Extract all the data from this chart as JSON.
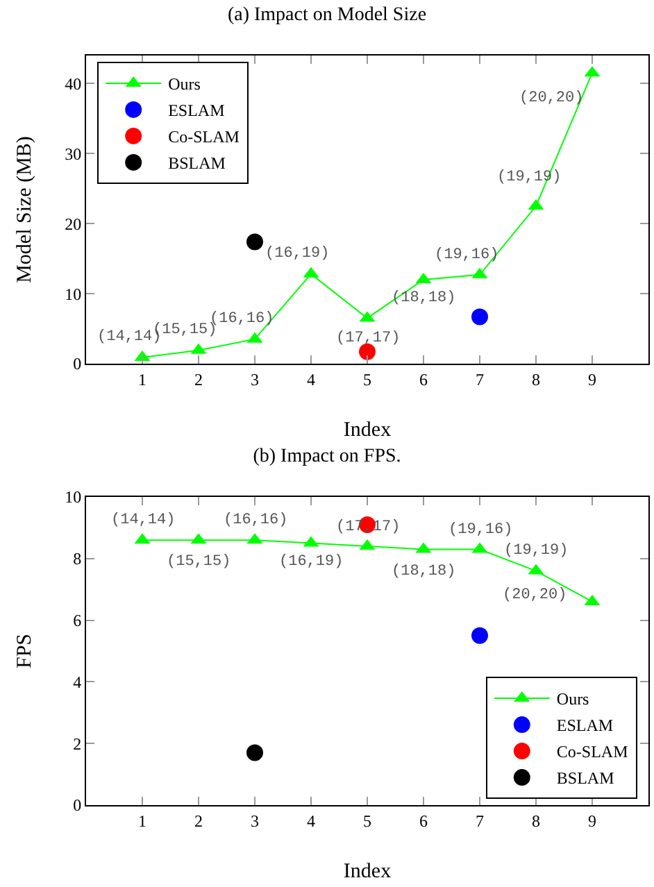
{
  "chart_data": [
    {
      "type": "line",
      "title": "(a) Impact on Model Size",
      "xlabel": "Index",
      "ylabel": "Model Size (MB)",
      "xlim": [
        0,
        10
      ],
      "xticks": [
        1,
        2,
        3,
        4,
        5,
        6,
        7,
        8,
        9
      ],
      "ylim": [
        0,
        44
      ],
      "yticks": [
        0,
        10,
        20,
        30,
        40
      ],
      "grid": false,
      "legend": "top left",
      "series": [
        {
          "name": "Ours",
          "color": "#00ff00",
          "marker": "triangle",
          "x": [
            1,
            2,
            3,
            4,
            5,
            6,
            7,
            8,
            9
          ],
          "values": [
            0.9,
            1.9,
            3.5,
            12.8,
            6.5,
            12.0,
            12.7,
            22.5,
            41.5
          ]
        },
        {
          "name": "ESLAM",
          "type": "scatter",
          "color": "#0000ff",
          "marker": "circle",
          "x": [
            7
          ],
          "values": [
            6.7
          ]
        },
        {
          "name": "Co-SLAM",
          "type": "scatter",
          "color": "#ff0000",
          "marker": "circle",
          "x": [
            5
          ],
          "values": [
            1.7
          ]
        },
        {
          "name": "BSLAM",
          "type": "scatter",
          "color": "#000000",
          "marker": "circle",
          "x": [
            3
          ],
          "values": [
            17.4
          ]
        }
      ],
      "annotations": [
        {
          "text": "(14,14)",
          "x": 1,
          "y": 0.9
        },
        {
          "text": "(15,15)",
          "x": 2,
          "y": 1.9
        },
        {
          "text": "(16,16)",
          "x": 3,
          "y": 3.5
        },
        {
          "text": "(16,19)",
          "x": 4,
          "y": 12.8
        },
        {
          "text": "(17,17)",
          "x": 5,
          "y": 6.5
        },
        {
          "text": "(18,18)",
          "x": 6,
          "y": 12.0
        },
        {
          "text": "(19,16)",
          "x": 7,
          "y": 12.7
        },
        {
          "text": "(19,19)",
          "x": 8,
          "y": 22.5
        },
        {
          "text": "(20,20)",
          "x": 9,
          "y": 41.5
        }
      ]
    },
    {
      "type": "line",
      "title": "(b) Impact on FPS.",
      "xlabel": "Index",
      "ylabel": "FPS",
      "xlim": [
        0,
        10
      ],
      "xticks": [
        1,
        2,
        3,
        4,
        5,
        6,
        7,
        8,
        9
      ],
      "ylim": [
        0,
        10
      ],
      "yticks": [
        0,
        2,
        4,
        6,
        8,
        10
      ],
      "grid": false,
      "legend": "bottom right",
      "series": [
        {
          "name": "Ours",
          "color": "#00ff00",
          "marker": "triangle",
          "x": [
            1,
            2,
            3,
            4,
            5,
            6,
            7,
            8,
            9
          ],
          "values": [
            8.6,
            8.6,
            8.6,
            8.5,
            8.4,
            8.3,
            8.3,
            7.6,
            6.6
          ]
        },
        {
          "name": "ESLAM",
          "type": "scatter",
          "color": "#0000ff",
          "marker": "circle",
          "x": [
            7
          ],
          "values": [
            5.5
          ]
        },
        {
          "name": "Co-SLAM",
          "type": "scatter",
          "color": "#ff0000",
          "marker": "circle",
          "x": [
            5
          ],
          "values": [
            9.1
          ]
        },
        {
          "name": "BSLAM",
          "type": "scatter",
          "color": "#000000",
          "marker": "circle",
          "x": [
            3
          ],
          "values": [
            1.7
          ]
        }
      ],
      "annotations": [
        {
          "text": "(14,14)",
          "x": 1,
          "y": 8.6
        },
        {
          "text": "(15,15)",
          "x": 2,
          "y": 8.6
        },
        {
          "text": "(16,16)",
          "x": 3,
          "y": 8.6
        },
        {
          "text": "(16,19)",
          "x": 4,
          "y": 8.5
        },
        {
          "text": "(17,17)",
          "x": 5,
          "y": 8.4
        },
        {
          "text": "(18,18)",
          "x": 6,
          "y": 8.3
        },
        {
          "text": "(19,16)",
          "x": 7,
          "y": 8.3
        },
        {
          "text": "(19,19)",
          "x": 8,
          "y": 7.6
        },
        {
          "text": "(20,20)",
          "x": 9,
          "y": 6.6
        }
      ]
    }
  ]
}
